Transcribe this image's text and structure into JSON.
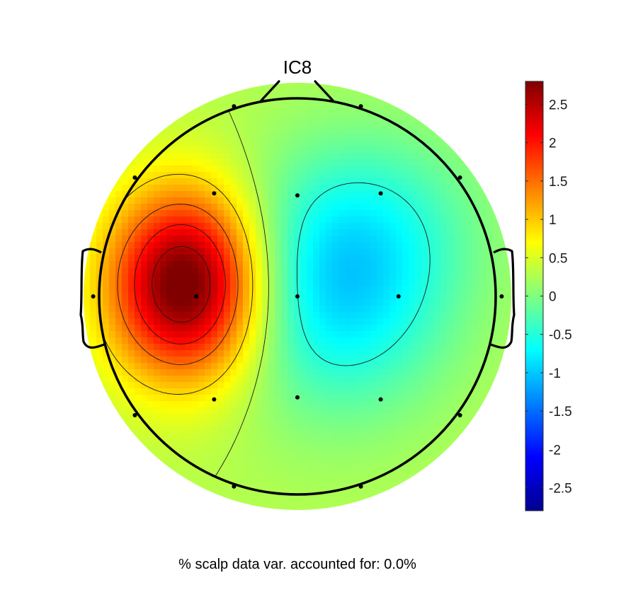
{
  "chart_data": {
    "type": "heatmap",
    "title": "IC8",
    "caption": "% scalp data var. accounted for: 0.0%",
    "colormap": "jet",
    "clim": [
      -2.8,
      2.8
    ],
    "colorbar": {
      "ticks": [
        2.5,
        2,
        1.5,
        1,
        0.5,
        0,
        -0.5,
        -1,
        -1.5,
        -2,
        -2.5
      ],
      "tick_labels": [
        "2.5",
        "2",
        "1.5",
        "1",
        "0.5",
        "0",
        "-0.5",
        "-1",
        "-1.5",
        "-2",
        "-2.5"
      ]
    },
    "sources": [
      {
        "x": -0.56,
        "y": 0.06,
        "value": 2.8,
        "sx": 0.27,
        "sy": 0.33
      },
      {
        "x": 0.2,
        "y": 0.0,
        "value": -1.1,
        "sx": 0.4,
        "sy": 0.42
      },
      {
        "x": 0.4,
        "y": 0.4,
        "value": -0.45,
        "sx": 0.4,
        "sy": 0.35
      }
    ],
    "baseline": 0.3,
    "contour_levels": [
      -0.5,
      0.3,
      0.9,
      1.5,
      2.0,
      2.5
    ],
    "electrodes": [
      {
        "x": -0.32,
        "y": 0.96
      },
      {
        "x": 0.32,
        "y": 0.96
      },
      {
        "x": -0.82,
        "y": 0.6
      },
      {
        "x": -0.42,
        "y": 0.52
      },
      {
        "x": 0.0,
        "y": 0.51
      },
      {
        "x": 0.42,
        "y": 0.52
      },
      {
        "x": 0.82,
        "y": 0.6
      },
      {
        "x": -1.03,
        "y": 0.0
      },
      {
        "x": -0.51,
        "y": 0.0
      },
      {
        "x": 0.0,
        "y": 0.0
      },
      {
        "x": 0.51,
        "y": 0.0
      },
      {
        "x": 1.03,
        "y": 0.0
      },
      {
        "x": -0.82,
        "y": -0.6
      },
      {
        "x": -0.42,
        "y": -0.52
      },
      {
        "x": 0.0,
        "y": -0.51
      },
      {
        "x": 0.42,
        "y": -0.52
      },
      {
        "x": 0.82,
        "y": -0.6
      },
      {
        "x": -0.32,
        "y": -0.96
      },
      {
        "x": 0.32,
        "y": -0.96
      }
    ]
  }
}
